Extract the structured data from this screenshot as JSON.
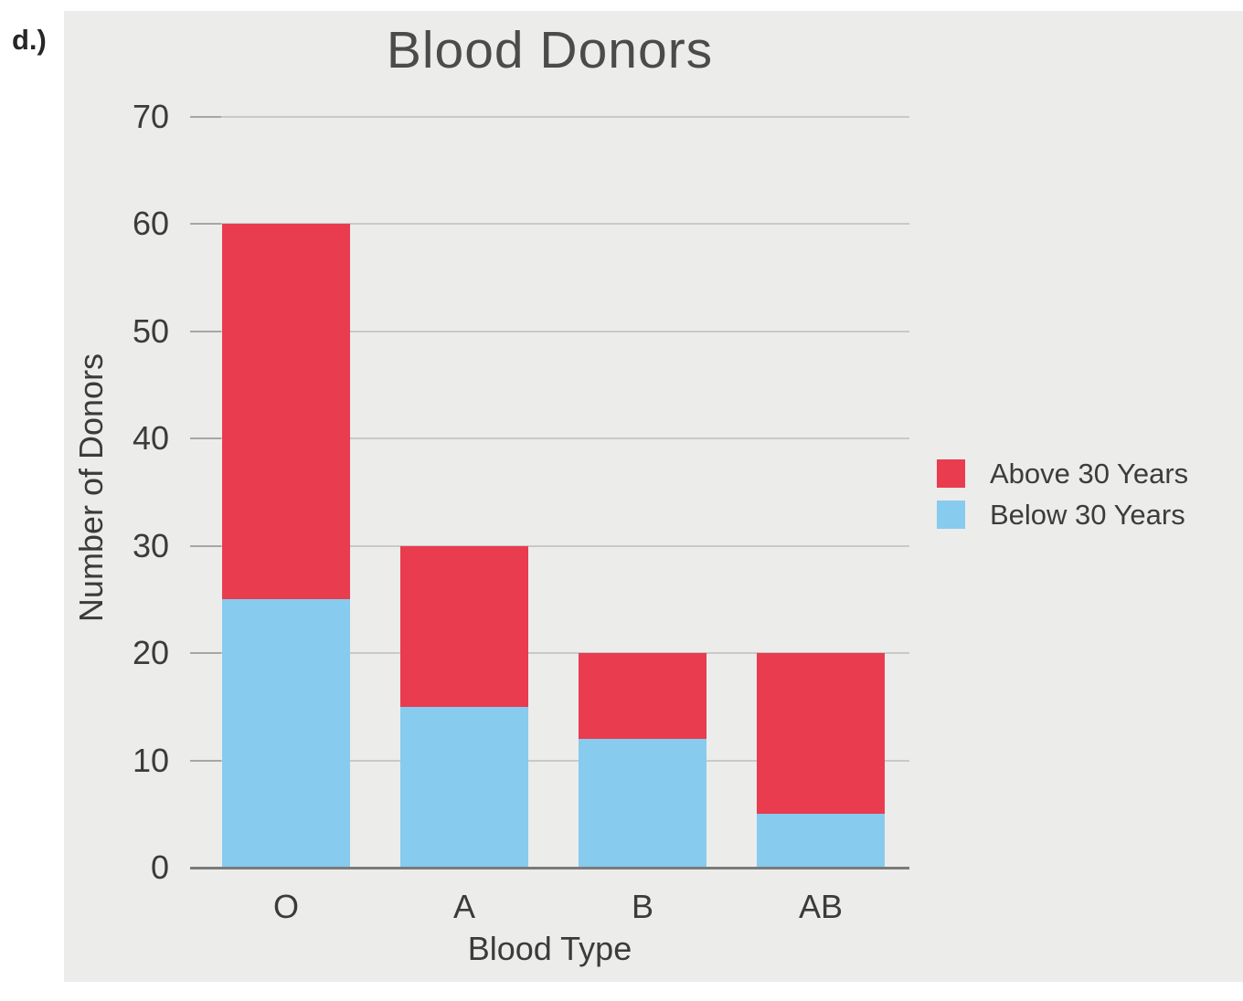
{
  "figure": {
    "item_label": "d.)"
  },
  "chart_data": {
    "type": "bar",
    "stacked": true,
    "title": "Blood Donors",
    "xlabel": "Blood Type",
    "ylabel": "Number of Donors",
    "categories": [
      "O",
      "A",
      "B",
      "AB"
    ],
    "series": [
      {
        "name": "Below 30 Years",
        "color": "#87CBEE",
        "values": [
          25,
          15,
          12,
          5
        ]
      },
      {
        "name": "Above 30 Years",
        "color": "#E93C4F",
        "values": [
          35,
          15,
          8,
          15
        ]
      }
    ],
    "totals": [
      60,
      30,
      20,
      20
    ],
    "ylim": [
      0,
      70
    ],
    "ytick_step": 10,
    "grid": true,
    "legend_position": "right",
    "legend_order_series_indices": [
      1,
      0
    ],
    "colors": {
      "panel_background": "#ECECEB",
      "gridline": "#C9C9C8",
      "axis_line": "#7A7A79",
      "text": "#3B3B3B",
      "title": "#4B4B4B"
    }
  }
}
